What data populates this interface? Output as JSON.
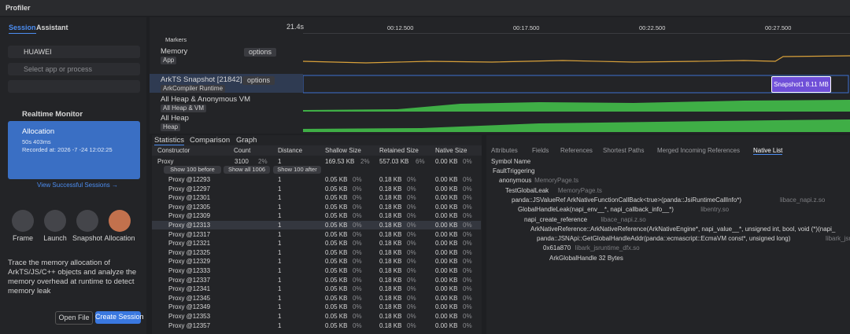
{
  "app_title": "Profiler",
  "sidebar": {
    "tabs": [
      "Session",
      "Assistant"
    ],
    "device": "HUAWEI",
    "app_placeholder": "Select app or process",
    "realtime_monitor": "Realtime Monitor",
    "session": {
      "name": "Allocation",
      "duration": "50s 403ms",
      "recorded": "Recorded at: 2026 -7 -24 12:02:25"
    },
    "view_sessions": "View Successful Sessions →",
    "tools": [
      "Frame",
      "Launch",
      "Snapshot",
      "Allocation"
    ],
    "description": "Trace the memory allocation of ArkTS/JS/C++ objects and analyze the memory overhead at runtime to detect memory leak",
    "buttons": [
      "Open File",
      "Create Session"
    ]
  },
  "timeline": {
    "duration": "21.4s",
    "ticks": [
      "00:12.500",
      "00:17.500",
      "00:22.500",
      "00:27.500"
    ],
    "markers": "Markers",
    "tracks": [
      {
        "name": "Memory",
        "options": "options",
        "tag": "App"
      },
      {
        "name": "ArkTS Snapshot [21842]",
        "options": "options",
        "tag": "ArkCompiler Runtime",
        "snapshot": "Snapshot1 8.11 MB"
      },
      {
        "name": "All Heap & Anonymous VM",
        "tag": "All Heap & VM"
      },
      {
        "name": "All Heap",
        "tag": "Heap"
      }
    ]
  },
  "table": {
    "tabs": [
      "Statistics",
      "Comparison",
      "Graph"
    ],
    "columns": [
      "Constructor",
      "Count",
      "Distance",
      "Shallow Size",
      "Retained Size",
      "Native Size"
    ],
    "root": [
      "Proxy",
      "3100",
      "2%",
      "1",
      "169.53 KB",
      "2%",
      "557.03 KB",
      "6%",
      "0.00 KB",
      "0%"
    ],
    "buttons": [
      "Show 100 before",
      "Show all 1006",
      "Show 100 after"
    ],
    "rows": [
      [
        "Proxy @12293",
        "1",
        "0.05 KB",
        "0%",
        "0.18 KB",
        "0%",
        "0.00 KB",
        "0%"
      ],
      [
        "Proxy @12297",
        "1",
        "0.05 KB",
        "0%",
        "0.18 KB",
        "0%",
        "0.00 KB",
        "0%"
      ],
      [
        "Proxy @12301",
        "1",
        "0.05 KB",
        "0%",
        "0.18 KB",
        "0%",
        "0.00 KB",
        "0%"
      ],
      [
        "Proxy @12305",
        "1",
        "0.05 KB",
        "0%",
        "0.18 KB",
        "0%",
        "0.00 KB",
        "0%"
      ],
      [
        "Proxy @12309",
        "1",
        "0.05 KB",
        "0%",
        "0.18 KB",
        "0%",
        "0.00 KB",
        "0%"
      ],
      [
        "Proxy @12313",
        "1",
        "0.05 KB",
        "0%",
        "0.18 KB",
        "0%",
        "0.00 KB",
        "0%"
      ],
      [
        "Proxy @12317",
        "1",
        "0.05 KB",
        "0%",
        "0.18 KB",
        "0%",
        "0.00 KB",
        "0%"
      ],
      [
        "Proxy @12321",
        "1",
        "0.05 KB",
        "0%",
        "0.18 KB",
        "0%",
        "0.00 KB",
        "0%"
      ],
      [
        "Proxy @12325",
        "1",
        "0.05 KB",
        "0%",
        "0.18 KB",
        "0%",
        "0.00 KB",
        "0%"
      ],
      [
        "Proxy @12329",
        "1",
        "0.05 KB",
        "0%",
        "0.18 KB",
        "0%",
        "0.00 KB",
        "0%"
      ],
      [
        "Proxy @12333",
        "1",
        "0.05 KB",
        "0%",
        "0.18 KB",
        "0%",
        "0.00 KB",
        "0%"
      ],
      [
        "Proxy @12337",
        "1",
        "0.05 KB",
        "0%",
        "0.18 KB",
        "0%",
        "0.00 KB",
        "0%"
      ],
      [
        "Proxy @12341",
        "1",
        "0.05 KB",
        "0%",
        "0.18 KB",
        "0%",
        "0.00 KB",
        "0%"
      ],
      [
        "Proxy @12345",
        "1",
        "0.05 KB",
        "0%",
        "0.18 KB",
        "0%",
        "0.00 KB",
        "0%"
      ],
      [
        "Proxy @12349",
        "1",
        "0.05 KB",
        "0%",
        "0.18 KB",
        "0%",
        "0.00 KB",
        "0%"
      ],
      [
        "Proxy @12353",
        "1",
        "0.05 KB",
        "0%",
        "0.18 KB",
        "0%",
        "0.00 KB",
        "0%"
      ],
      [
        "Proxy @12357",
        "1",
        "0.05 KB",
        "0%",
        "0.18 KB",
        "0%",
        "0.00 KB",
        "0%"
      ]
    ]
  },
  "detail": {
    "tabs": [
      "Attributes",
      "Fields",
      "References",
      "Shortest Paths",
      "Merged Incoming References",
      "Native List"
    ],
    "header": "Symbol Name",
    "tree": [
      {
        "name": "FaultTriggering"
      },
      {
        "name": "anonymous",
        "lib": "MemoryPage.ts"
      },
      {
        "name": "TestGlobalLeak",
        "lib": "MemoryPage.ts"
      },
      {
        "name": "panda::JSValueRef ArkNativeFunctionCallBack<true>(panda::JsiRuntimeCallInfo*)",
        "lib": "libace_napi.z.so"
      },
      {
        "name": "GlobalHandleLeak(napi_env__*, napi_callback_info__*)",
        "lib": "libentry.so"
      },
      {
        "name": "napi_create_reference",
        "lib": "libace_napi.z.so"
      },
      {
        "name": "ArkNativeReference::ArkNativeReference(ArkNativeEngine*, napi_value__*, unsigned int, bool, void (*)(napi_"
      },
      {
        "name": "panda::JSNApi::GetGlobalHandleAddr(panda::ecmascript::EcmaVM const*, unsigned long)",
        "lib": "libark_jsruntime"
      },
      {
        "name": "0x61a870",
        "lib": "libark_jsruntime_dfx.so"
      },
      {
        "name": "ArkGlobalHandle 32 Bytes"
      }
    ]
  }
}
